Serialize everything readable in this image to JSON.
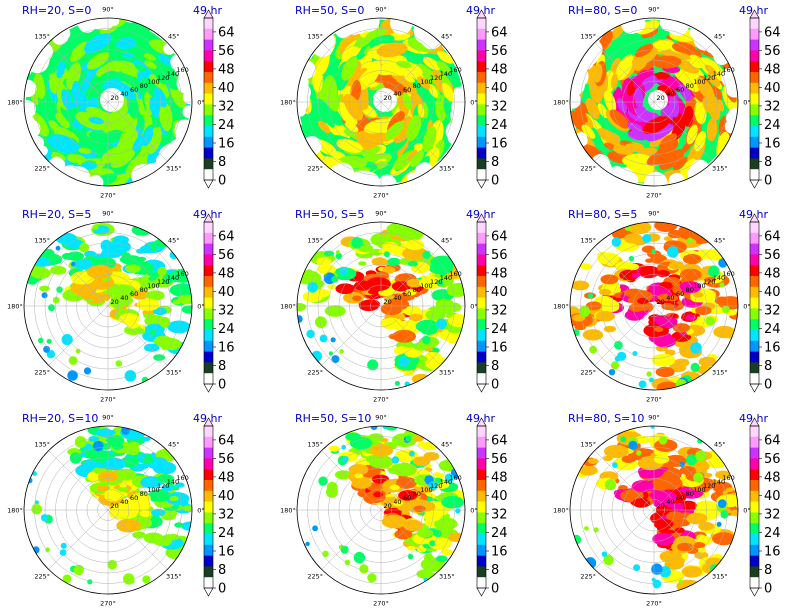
{
  "chart_data": [
    {
      "type": "heatmap",
      "title": "RH=20, S=0",
      "time_label": "49 hr",
      "rh": 20,
      "s": 0,
      "structure": "closed-ring"
    },
    {
      "type": "heatmap",
      "title": "RH=50, S=0",
      "time_label": "49 hr",
      "rh": 50,
      "s": 0,
      "structure": "closed-ring"
    },
    {
      "type": "heatmap",
      "title": "RH=80, S=0",
      "time_label": "49 hr",
      "rh": 80,
      "s": 0,
      "structure": "closed-ring"
    },
    {
      "type": "heatmap",
      "title": "RH=20, S=5",
      "time_label": "49 hr",
      "rh": 20,
      "s": 5,
      "structure": "sheared"
    },
    {
      "type": "heatmap",
      "title": "RH=50, S=5",
      "time_label": "49 hr",
      "rh": 50,
      "s": 5,
      "structure": "sheared"
    },
    {
      "type": "heatmap",
      "title": "RH=80, S=5",
      "time_label": "49 hr",
      "rh": 80,
      "s": 5,
      "structure": "sheared"
    },
    {
      "type": "heatmap",
      "title": "RH=20, S=10",
      "time_label": "49 hr",
      "rh": 20,
      "s": 10,
      "structure": "sheared"
    },
    {
      "type": "heatmap",
      "title": "RH=50, S=10",
      "time_label": "49 hr",
      "rh": 50,
      "s": 10,
      "structure": "sheared"
    },
    {
      "type": "heatmap",
      "title": "RH=80, S=10",
      "time_label": "49 hr",
      "rh": 80,
      "s": 10,
      "structure": "sheared"
    }
  ],
  "polar_axes": {
    "angle_labels": [
      "0°",
      "45°",
      "90°",
      "135°",
      "180°",
      "225°",
      "270°",
      "315°"
    ],
    "radial_labels": [
      "20",
      "40",
      "60",
      "80",
      "100",
      "120",
      "140",
      "160"
    ]
  },
  "colorbar": {
    "ticks": [
      "0",
      "8",
      "16",
      "24",
      "32",
      "40",
      "48",
      "56",
      "64"
    ],
    "min": 0,
    "max": 70,
    "colors": [
      "#ffffff",
      "#1a3f20",
      "#0000c8",
      "#0096ff",
      "#00e5ff",
      "#00ff66",
      "#88ff00",
      "#ffff00",
      "#ffbb00",
      "#ff6600",
      "#ff0000",
      "#ff00aa",
      "#cc33ff",
      "#ff99ff",
      "#ffd6ff"
    ]
  }
}
